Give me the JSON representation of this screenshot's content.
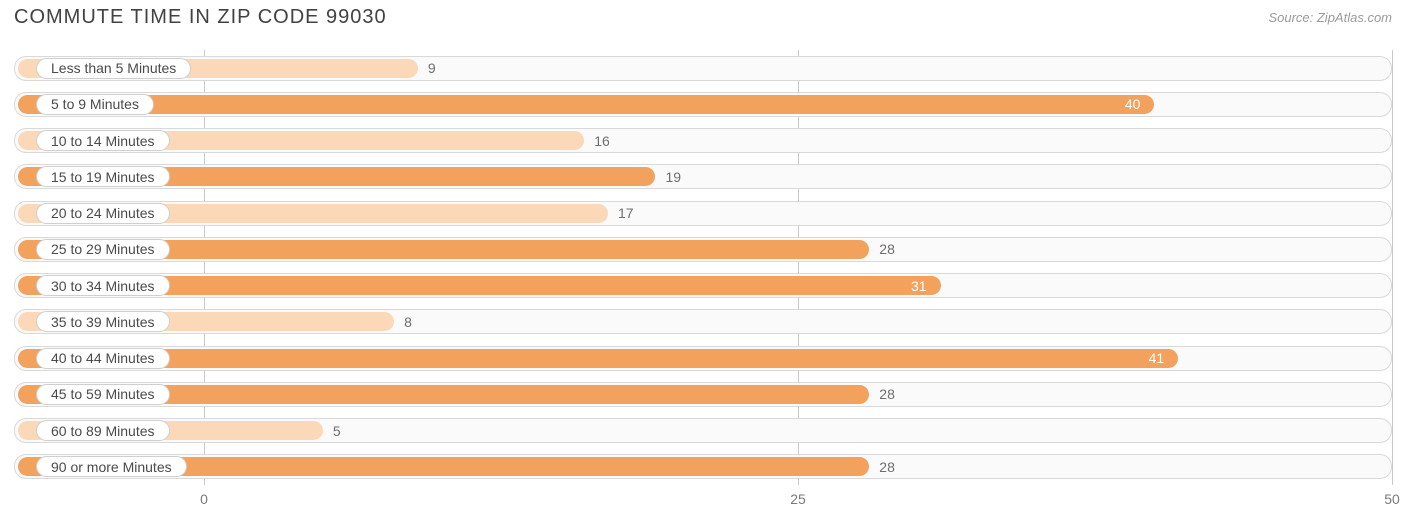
{
  "title": "COMMUTE TIME IN ZIP CODE 99030",
  "source": "Source: ZipAtlas.com",
  "chart": {
    "type": "bar-horizontal",
    "background_color": "#ffffff",
    "track_border_color": "#d9d9d9",
    "track_bg_color": "#fafafa",
    "grid_color": "#c9c9c9",
    "text_color": "#4a4a4a",
    "bar_color_strong": "#f2a25c",
    "bar_color_light": "#fbd9b8",
    "value_text_on_bar": "#ffffff",
    "value_text_off_bar": "#6e6e6e",
    "xmin": -8,
    "xmax": 50,
    "xticks": [
      0,
      25,
      50
    ],
    "inside_threshold": 30,
    "rows": [
      {
        "label": "Less than 5 Minutes",
        "value": 9,
        "shade": "light"
      },
      {
        "label": "5 to 9 Minutes",
        "value": 40,
        "shade": "strong"
      },
      {
        "label": "10 to 14 Minutes",
        "value": 16,
        "shade": "light"
      },
      {
        "label": "15 to 19 Minutes",
        "value": 19,
        "shade": "strong"
      },
      {
        "label": "20 to 24 Minutes",
        "value": 17,
        "shade": "light"
      },
      {
        "label": "25 to 29 Minutes",
        "value": 28,
        "shade": "strong"
      },
      {
        "label": "30 to 34 Minutes",
        "value": 31,
        "shade": "strong"
      },
      {
        "label": "35 to 39 Minutes",
        "value": 8,
        "shade": "light"
      },
      {
        "label": "40 to 44 Minutes",
        "value": 41,
        "shade": "strong"
      },
      {
        "label": "45 to 59 Minutes",
        "value": 28,
        "shade": "strong"
      },
      {
        "label": "60 to 89 Minutes",
        "value": 5,
        "shade": "light"
      },
      {
        "label": "90 or more Minutes",
        "value": 28,
        "shade": "strong"
      }
    ]
  }
}
